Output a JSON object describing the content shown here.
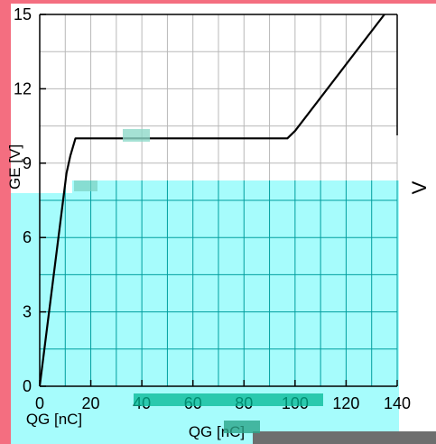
{
  "colors": {
    "page_background": "#ffffff",
    "left_stripe": "#f46e80",
    "panel_background": "#a6fcfc",
    "grid_top": "#b8b8b8",
    "grid_bottom": "#009e9e",
    "curve": "#000000",
    "glitch": "#00b894"
  },
  "chart_data": {
    "type": "line",
    "title": "",
    "xlabel": "QG [nC]",
    "ylabel": "VGE [V]",
    "xlim": [
      0,
      140
    ],
    "ylim": [
      0,
      15
    ],
    "grid": true,
    "x_ticks": [
      0,
      20,
      40,
      60,
      80,
      100,
      120,
      140
    ],
    "x_tick_labels": [
      "0",
      "20",
      "40",
      "60",
      "80",
      "100",
      "120",
      "140"
    ],
    "y_ticks": [
      0,
      3,
      6,
      9,
      12,
      15
    ],
    "y_tick_labels": [
      "0",
      "3",
      "6",
      "9",
      "12",
      "15"
    ],
    "x_axis_label_text": "QG [nC]",
    "secondary_axis_label": "QG [nC]",
    "y_axis_label_fragment": "GE [V]",
    "right_axis_label_fragment": "V",
    "series": [
      {
        "x": [
          0,
          10.5,
          12,
          14,
          25,
          97,
          100,
          135
        ],
        "y": [
          0,
          8.6,
          9.3,
          10,
          10,
          10,
          10.3,
          15
        ]
      }
    ]
  }
}
